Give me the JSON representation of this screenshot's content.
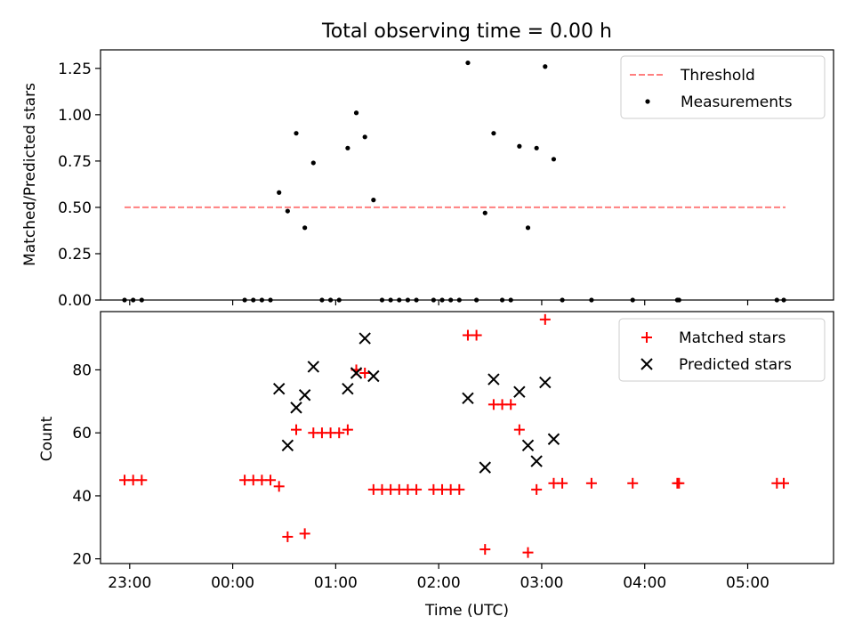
{
  "title": "Total observing time = 0.00 h",
  "colors": {
    "threshold": "#ff7f7f",
    "measurement": "#000000",
    "matched": "#ff0000",
    "predicted": "#000000"
  },
  "chart_data": [
    {
      "type": "scatter",
      "ylabel": "Matched/Predicted stars",
      "xlim": [
        "22:43",
        "05:50"
      ],
      "ylim": [
        0,
        1.35
      ],
      "yticks": [
        "0.00",
        "0.25",
        "0.50",
        "0.75",
        "1.00",
        "1.25"
      ],
      "legend_position": "top-right",
      "threshold": {
        "name": "Threshold",
        "x": [
          "22:57",
          "05:22"
        ],
        "y": 0.5
      },
      "series": [
        {
          "name": "Measurements",
          "points": [
            [
              "22:57",
              0.0
            ],
            [
              "23:02",
              0.0
            ],
            [
              "23:07",
              0.0
            ],
            [
              "00:07",
              0.0
            ],
            [
              "00:12",
              0.0
            ],
            [
              "00:17",
              0.0
            ],
            [
              "00:22",
              0.0
            ],
            [
              "00:27",
              0.58
            ],
            [
              "00:32",
              0.48
            ],
            [
              "00:37",
              0.9
            ],
            [
              "00:42",
              0.39
            ],
            [
              "00:47",
              0.74
            ],
            [
              "00:52",
              0.0
            ],
            [
              "00:57",
              0.0
            ],
            [
              "01:02",
              0.0
            ],
            [
              "01:07",
              0.82
            ],
            [
              "01:12",
              1.01
            ],
            [
              "01:17",
              0.88
            ],
            [
              "01:22",
              0.54
            ],
            [
              "01:27",
              0.0
            ],
            [
              "01:32",
              0.0
            ],
            [
              "01:37",
              0.0
            ],
            [
              "01:42",
              0.0
            ],
            [
              "01:47",
              0.0
            ],
            [
              "01:57",
              0.0
            ],
            [
              "02:02",
              0.0
            ],
            [
              "02:07",
              0.0
            ],
            [
              "02:12",
              0.0
            ],
            [
              "02:17",
              1.28
            ],
            [
              "02:22",
              0.0
            ],
            [
              "02:27",
              0.47
            ],
            [
              "02:32",
              0.9
            ],
            [
              "02:37",
              0.0
            ],
            [
              "02:42",
              0.0
            ],
            [
              "02:47",
              0.83
            ],
            [
              "02:52",
              0.39
            ],
            [
              "02:57",
              0.82
            ],
            [
              "03:02",
              1.26
            ],
            [
              "03:07",
              0.76
            ],
            [
              "03:12",
              0.0
            ],
            [
              "03:29",
              0.0
            ],
            [
              "03:53",
              0.0
            ],
            [
              "04:19",
              0.0
            ],
            [
              "04:20",
              0.0
            ],
            [
              "05:17",
              0.0
            ],
            [
              "05:21",
              0.0
            ]
          ]
        }
      ]
    },
    {
      "type": "scatter",
      "xlabel": "Time (UTC)",
      "ylabel": "Count",
      "xlim": [
        "22:43",
        "05:50"
      ],
      "ylim": [
        18.5,
        98.5
      ],
      "xticks": [
        "23:00",
        "00:00",
        "01:00",
        "02:00",
        "03:00",
        "04:00",
        "05:00"
      ],
      "yticks": [
        "20",
        "40",
        "60",
        "80"
      ],
      "legend_position": "top-right",
      "series": [
        {
          "name": "Matched stars",
          "marker": "plus",
          "points": [
            [
              "22:57",
              45
            ],
            [
              "23:02",
              45
            ],
            [
              "23:07",
              45
            ],
            [
              "00:07",
              45
            ],
            [
              "00:12",
              45
            ],
            [
              "00:17",
              45
            ],
            [
              "00:22",
              45
            ],
            [
              "00:27",
              43
            ],
            [
              "00:32",
              27
            ],
            [
              "00:37",
              61
            ],
            [
              "00:42",
              28
            ],
            [
              "00:47",
              60
            ],
            [
              "00:52",
              60
            ],
            [
              "00:57",
              60
            ],
            [
              "01:02",
              60
            ],
            [
              "01:07",
              61
            ],
            [
              "01:12",
              80
            ],
            [
              "01:17",
              79
            ],
            [
              "01:22",
              42
            ],
            [
              "01:27",
              42
            ],
            [
              "01:32",
              42
            ],
            [
              "01:37",
              42
            ],
            [
              "01:42",
              42
            ],
            [
              "01:47",
              42
            ],
            [
              "01:57",
              42
            ],
            [
              "02:02",
              42
            ],
            [
              "02:07",
              42
            ],
            [
              "02:12",
              42
            ],
            [
              "02:17",
              91
            ],
            [
              "02:22",
              91
            ],
            [
              "02:27",
              23
            ],
            [
              "02:32",
              69
            ],
            [
              "02:37",
              69
            ],
            [
              "02:42",
              69
            ],
            [
              "02:47",
              61
            ],
            [
              "02:52",
              22
            ],
            [
              "02:57",
              42
            ],
            [
              "03:02",
              96
            ],
            [
              "03:07",
              44
            ],
            [
              "03:12",
              44
            ],
            [
              "03:29",
              44
            ],
            [
              "03:53",
              44
            ],
            [
              "04:19",
              44
            ],
            [
              "04:20",
              44
            ],
            [
              "05:17",
              44
            ],
            [
              "05:21",
              44
            ]
          ]
        },
        {
          "name": "Predicted stars",
          "marker": "x",
          "points": [
            [
              "00:27",
              74
            ],
            [
              "00:32",
              56
            ],
            [
              "00:37",
              68
            ],
            [
              "00:42",
              72
            ],
            [
              "00:47",
              81
            ],
            [
              "01:07",
              74
            ],
            [
              "01:12",
              79
            ],
            [
              "01:17",
              90
            ],
            [
              "01:22",
              78
            ],
            [
              "02:17",
              71
            ],
            [
              "02:27",
              49
            ],
            [
              "02:32",
              77
            ],
            [
              "02:47",
              73
            ],
            [
              "02:52",
              56
            ],
            [
              "02:57",
              51
            ],
            [
              "03:02",
              76
            ],
            [
              "03:07",
              58
            ]
          ]
        }
      ]
    }
  ]
}
